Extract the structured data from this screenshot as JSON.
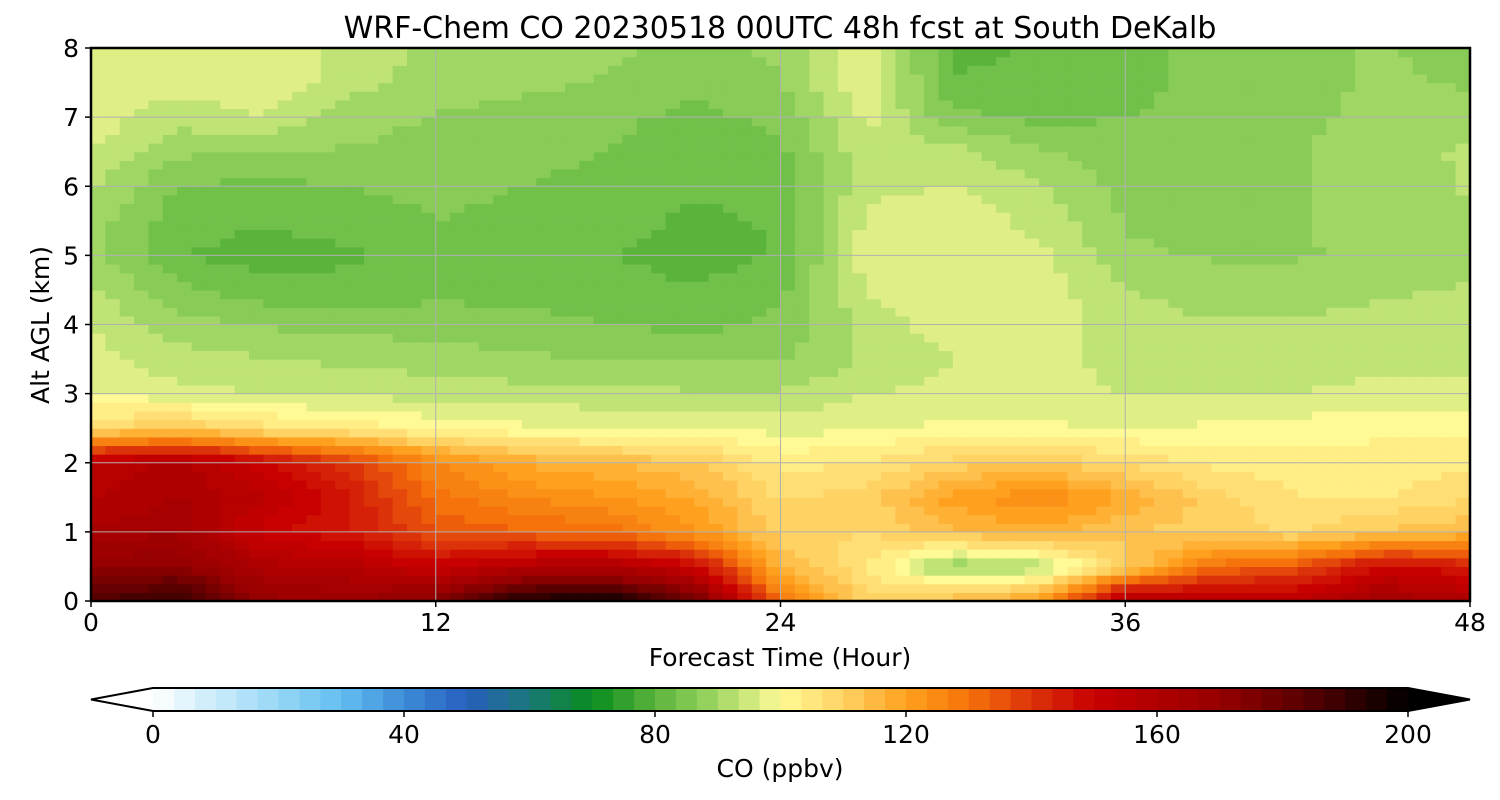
{
  "chart_data": {
    "type": "heatmap",
    "title": "WRF-Chem CO  20230518 00UTC 48h fcst at South DeKalb",
    "xlabel": "Forecast Time (Hour)",
    "ylabel": "Alt AGL (km)",
    "xlim": [
      0,
      48
    ],
    "ylim": [
      0,
      8
    ],
    "xticks": [
      0,
      12,
      24,
      36,
      48
    ],
    "yticks": [
      0,
      1,
      2,
      3,
      4,
      5,
      6,
      7,
      8
    ],
    "grid": true,
    "x": [
      0,
      3,
      6,
      9,
      12,
      15,
      18,
      21,
      24,
      27,
      30,
      33,
      36,
      39,
      42,
      45,
      48
    ],
    "y": [
      0,
      0.5,
      1,
      1.5,
      2,
      2.5,
      3,
      3.5,
      4,
      4.5,
      5,
      5.5,
      6,
      6.5,
      7,
      7.5,
      8
    ],
    "z": [
      [
        185,
        190,
        170,
        168,
        175,
        195,
        200,
        180,
        130,
        110,
        115,
        120,
        160,
        158,
        155,
        165,
        160
      ],
      [
        170,
        172,
        160,
        158,
        150,
        158,
        160,
        150,
        115,
        105,
        88,
        92,
        110,
        130,
        135,
        150,
        145
      ],
      [
        162,
        165,
        150,
        145,
        135,
        132,
        130,
        122,
        110,
        108,
        114,
        117,
        112,
        110,
        108,
        112,
        115
      ],
      [
        158,
        162,
        155,
        145,
        130,
        125,
        122,
        118,
        108,
        110,
        120,
        125,
        118,
        110,
        105,
        105,
        108
      ],
      [
        155,
        160,
        150,
        140,
        125,
        118,
        115,
        112,
        104,
        105,
        110,
        112,
        108,
        104,
        103,
        103,
        104
      ],
      [
        108,
        112,
        106,
        104,
        100,
        99,
        98,
        98,
        97,
        98,
        99,
        99,
        98,
        99,
        100,
        101,
        101
      ],
      [
        98,
        96,
        95,
        94,
        94,
        93,
        93,
        92,
        92,
        95,
        96,
        96,
        95,
        95,
        95,
        96,
        96
      ],
      [
        96,
        93,
        92,
        91,
        90,
        89,
        88,
        88,
        88,
        92,
        95,
        96,
        94,
        93,
        93,
        94,
        94
      ],
      [
        95,
        90,
        88,
        87,
        87,
        86,
        85,
        84,
        86,
        93,
        97,
        97,
        93,
        92,
        92,
        93,
        94
      ],
      [
        92,
        86,
        83,
        83,
        84,
        84,
        83,
        82,
        84,
        95,
        98,
        97,
        92,
        90,
        90,
        91,
        92
      ],
      [
        90,
        82,
        80,
        81,
        84,
        82,
        82,
        80,
        82,
        97,
        98,
        96,
        89,
        88,
        88,
        89,
        91
      ],
      [
        90,
        83,
        82,
        83,
        85,
        84,
        83,
        81,
        82,
        96,
        97,
        94,
        88,
        87,
        88,
        90,
        91
      ],
      [
        92,
        85,
        84,
        85,
        86,
        85,
        84,
        82,
        83,
        94,
        95,
        92,
        87,
        87,
        88,
        90,
        92
      ],
      [
        95,
        89,
        88,
        88,
        87,
        86,
        85,
        82,
        84,
        94,
        93,
        89,
        86,
        86,
        88,
        91,
        92
      ],
      [
        97,
        93,
        95,
        90,
        88,
        87,
        86,
        84,
        86,
        96,
        86,
        84,
        85,
        86,
        87,
        90,
        90
      ],
      [
        98,
        96,
        98,
        93,
        90,
        89,
        88,
        86,
        88,
        98,
        82,
        82,
        84,
        86,
        87,
        89,
        88
      ],
      [
        97,
        97,
        98,
        94,
        91,
        90,
        89,
        87,
        89,
        97,
        81,
        82,
        84,
        86,
        87,
        89,
        86
      ]
    ],
    "colorbar": {
      "label": "CO  (ppbv)",
      "vmin": 0,
      "vmax": 200,
      "ticks": [
        0,
        40,
        80,
        120,
        160,
        200
      ],
      "extend": "both",
      "placement": "bottom"
    }
  }
}
